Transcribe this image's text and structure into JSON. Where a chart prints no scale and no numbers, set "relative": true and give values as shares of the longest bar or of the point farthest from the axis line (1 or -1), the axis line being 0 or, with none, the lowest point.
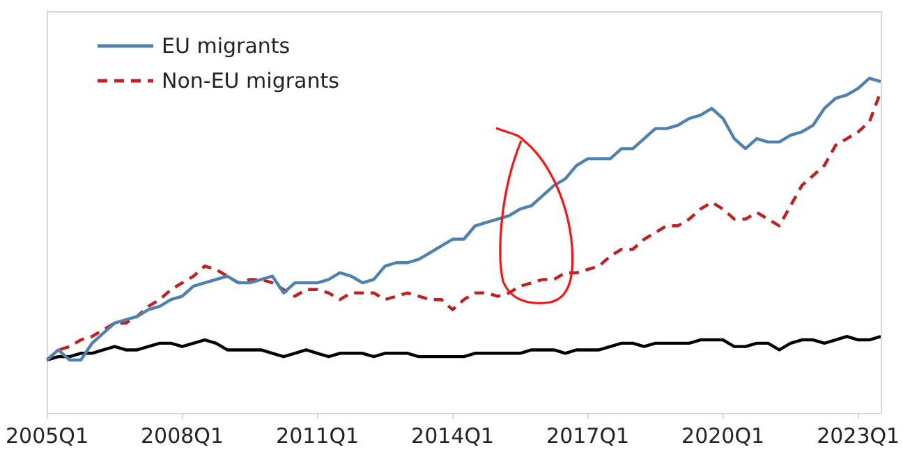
{
  "chart_data": {
    "type": "line",
    "relative": true,
    "grid": false,
    "marker": "none",
    "legend": "top left",
    "categories": [
      "2005Q1",
      null,
      null,
      null,
      null,
      null,
      null,
      null,
      null,
      null,
      null,
      null,
      "2008Q1",
      null,
      null,
      null,
      null,
      null,
      null,
      null,
      null,
      null,
      null,
      null,
      "2011Q1",
      null,
      null,
      null,
      null,
      null,
      null,
      null,
      null,
      null,
      null,
      null,
      "2014Q1",
      null,
      null,
      null,
      null,
      null,
      null,
      null,
      null,
      null,
      null,
      null,
      "2017Q1",
      null,
      null,
      null,
      null,
      null,
      null,
      null,
      null,
      null,
      null,
      null,
      "2020Q1",
      null,
      null,
      null,
      null,
      null,
      null,
      null,
      null,
      null,
      null,
      null,
      "2023Q1",
      null,
      null
    ],
    "series": [
      {
        "name": "EU migrants",
        "color": "#4f81b0",
        "line_style": "solid",
        "values": [
          0.16,
          0.19,
          0.16,
          0.16,
          0.21,
          0.24,
          0.27,
          0.28,
          0.29,
          0.31,
          0.32,
          0.34,
          0.35,
          0.38,
          0.39,
          0.4,
          0.41,
          0.39,
          0.39,
          0.4,
          0.41,
          0.36,
          0.39,
          0.39,
          0.39,
          0.4,
          0.42,
          0.41,
          0.39,
          0.4,
          0.44,
          0.45,
          0.45,
          0.46,
          0.48,
          0.5,
          0.52,
          0.52,
          0.56,
          0.57,
          0.58,
          0.59,
          0.61,
          0.62,
          0.65,
          0.68,
          0.7,
          0.74,
          0.76,
          0.76,
          0.76,
          0.79,
          0.79,
          0.82,
          0.85,
          0.85,
          0.86,
          0.88,
          0.89,
          0.91,
          0.88,
          0.82,
          0.79,
          0.82,
          0.81,
          0.81,
          0.83,
          0.84,
          0.86,
          0.91,
          0.94,
          0.95,
          0.97,
          1.0,
          0.99
        ]
      },
      {
        "name": "Non-EU migrants",
        "color": "#c0201e",
        "line_style": "dashed",
        "values": [
          0.16,
          0.19,
          0.2,
          0.22,
          0.23,
          0.25,
          0.27,
          0.27,
          0.29,
          0.32,
          0.34,
          0.37,
          0.39,
          0.41,
          0.44,
          0.43,
          0.41,
          0.39,
          0.4,
          0.4,
          0.39,
          0.37,
          0.35,
          0.37,
          0.37,
          0.36,
          0.34,
          0.36,
          0.36,
          0.36,
          0.34,
          0.35,
          0.36,
          0.35,
          0.34,
          0.34,
          0.31,
          0.34,
          0.36,
          0.36,
          0.35,
          0.36,
          0.38,
          0.39,
          0.4,
          0.4,
          0.42,
          0.42,
          0.43,
          0.44,
          0.47,
          0.49,
          0.49,
          0.52,
          0.54,
          0.56,
          0.56,
          0.58,
          0.61,
          0.63,
          0.61,
          0.58,
          0.58,
          0.6,
          0.58,
          0.56,
          0.62,
          0.68,
          0.71,
          0.74,
          0.8,
          0.82,
          0.84,
          0.87,
          0.96
        ]
      },
      {
        "color": "#000000",
        "line_style": "solid",
        "values": [
          0.16,
          0.17,
          0.17,
          0.18,
          0.18,
          0.19,
          0.2,
          0.19,
          0.19,
          0.2,
          0.21,
          0.21,
          0.2,
          0.21,
          0.22,
          0.21,
          0.19,
          0.19,
          0.19,
          0.19,
          0.18,
          0.17,
          0.18,
          0.19,
          0.18,
          0.17,
          0.18,
          0.18,
          0.18,
          0.17,
          0.18,
          0.18,
          0.18,
          0.17,
          0.17,
          0.17,
          0.17,
          0.17,
          0.18,
          0.18,
          0.18,
          0.18,
          0.18,
          0.19,
          0.19,
          0.19,
          0.18,
          0.19,
          0.19,
          0.19,
          0.2,
          0.21,
          0.21,
          0.2,
          0.21,
          0.21,
          0.21,
          0.21,
          0.22,
          0.22,
          0.22,
          0.2,
          0.2,
          0.21,
          0.21,
          0.19,
          0.21,
          0.22,
          0.22,
          0.21,
          0.22,
          0.23,
          0.22,
          0.22,
          0.23
        ]
      }
    ]
  }
}
